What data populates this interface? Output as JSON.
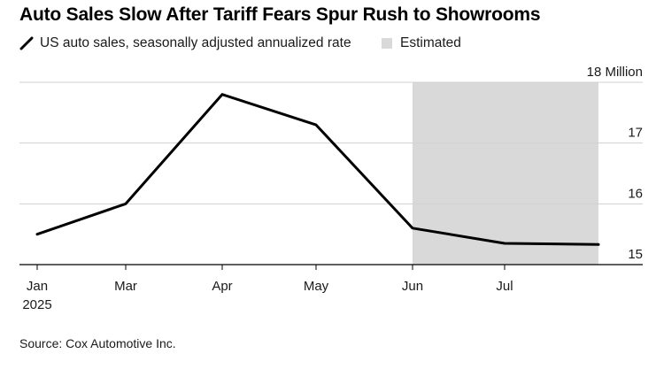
{
  "title": "Auto Sales Slow After Tariff Fears Spur Rush to Showrooms",
  "legend": {
    "series_label": "US auto sales, seasonally adjusted annualized rate",
    "estimated_label": "Estimated"
  },
  "source": "Source: Cox Automotive Inc.",
  "colors": {
    "line": "#000000",
    "shade": "#d9d9d9",
    "grid": "#d0d0d0",
    "axis": "#000000"
  },
  "chart_data": {
    "type": "line",
    "title": "Auto Sales Slow After Tariff Fears Spur Rush to Showrooms",
    "xlabel": "",
    "ylabel": "",
    "x": [
      "2025-01",
      "2025-03",
      "2025-04",
      "2025-05",
      "2025-06",
      "2025-07",
      "2025-08"
    ],
    "values": [
      15.5,
      16.0,
      17.8,
      17.3,
      15.6,
      15.35,
      15.33
    ],
    "x_ticks": [
      {
        "x": "2025-01",
        "label": "Jan",
        "sublabel": "2025"
      },
      {
        "x": "2025-03",
        "label": "Mar"
      },
      {
        "x": "2025-04",
        "label": "Apr"
      },
      {
        "x": "2025-05",
        "label": "May"
      },
      {
        "x": "2025-06",
        "label": "Jun"
      },
      {
        "x": "2025-07",
        "label": "Jul"
      }
    ],
    "y_ticks": [
      {
        "value": 15,
        "label": "15"
      },
      {
        "value": 16,
        "label": "16"
      },
      {
        "value": 17,
        "label": "17"
      },
      {
        "value": 18,
        "label": "18 Million"
      }
    ],
    "ylim": [
      15,
      18
    ],
    "estimated_range": [
      "2025-06",
      "2025-08"
    ],
    "grid": true,
    "legend_position": "top-left",
    "y_axis_side": "right"
  }
}
